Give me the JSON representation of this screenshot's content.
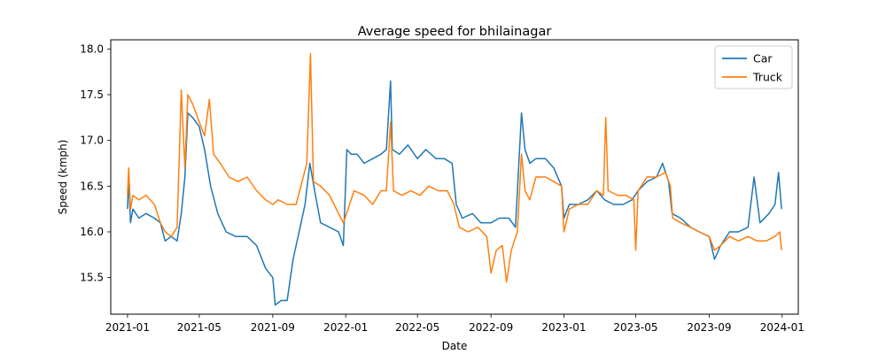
{
  "chart_data": {
    "type": "line",
    "title": "Average speed for bhilainagar",
    "xlabel": "Date",
    "ylabel": "Speed (kmph)",
    "xlim": [
      "2020-12-04",
      "2024-01-28"
    ],
    "ylim": [
      15.1,
      18.1
    ],
    "x_ticks": [
      "2021-01-01",
      "2021-05-01",
      "2021-09-01",
      "2022-01-01",
      "2022-05-01",
      "2022-09-01",
      "2023-01-01",
      "2023-05-01",
      "2023-09-01",
      "2024-01-01"
    ],
    "x_tick_labels": [
      "2021-01",
      "2021-05",
      "2021-09",
      "2022-01",
      "2022-05",
      "2022-09",
      "2023-01",
      "2023-05",
      "2023-09",
      "2024-01"
    ],
    "y_ticks": [
      15.5,
      16.0,
      16.5,
      17.0,
      17.5,
      18.0
    ],
    "y_tick_labels": [
      "15.5",
      "16.0",
      "16.5",
      "17.0",
      "17.5",
      "18.0"
    ],
    "grid": false,
    "legend_position": "top-right",
    "series": [
      {
        "name": "Car",
        "color": "#1f77b4",
        "points": [
          [
            "2021-01-01",
            16.25
          ],
          [
            "2021-01-03",
            16.6
          ],
          [
            "2021-01-06",
            16.1
          ],
          [
            "2021-01-10",
            16.25
          ],
          [
            "2021-01-20",
            16.15
          ],
          [
            "2021-02-01",
            16.2
          ],
          [
            "2021-02-15",
            16.15
          ],
          [
            "2021-02-25",
            16.1
          ],
          [
            "2021-03-05",
            15.9
          ],
          [
            "2021-03-15",
            15.95
          ],
          [
            "2021-03-25",
            15.9
          ],
          [
            "2021-04-01",
            16.2
          ],
          [
            "2021-04-07",
            16.6
          ],
          [
            "2021-04-12",
            17.3
          ],
          [
            "2021-04-20",
            17.25
          ],
          [
            "2021-05-01",
            17.15
          ],
          [
            "2021-05-10",
            16.9
          ],
          [
            "2021-05-20",
            16.5
          ],
          [
            "2021-06-01",
            16.2
          ],
          [
            "2021-06-15",
            16.0
          ],
          [
            "2021-07-01",
            15.95
          ],
          [
            "2021-07-20",
            15.95
          ],
          [
            "2021-08-05",
            15.85
          ],
          [
            "2021-08-20",
            15.6
          ],
          [
            "2021-09-01",
            15.5
          ],
          [
            "2021-09-05",
            15.2
          ],
          [
            "2021-09-15",
            15.25
          ],
          [
            "2021-09-25",
            15.25
          ],
          [
            "2021-10-05",
            15.7
          ],
          [
            "2021-10-15",
            16.0
          ],
          [
            "2021-10-25",
            16.3
          ],
          [
            "2021-11-02",
            16.75
          ],
          [
            "2021-11-10",
            16.45
          ],
          [
            "2021-11-20",
            16.1
          ],
          [
            "2021-12-05",
            16.05
          ],
          [
            "2021-12-20",
            16.0
          ],
          [
            "2021-12-28",
            15.85
          ],
          [
            "2022-01-03",
            16.9
          ],
          [
            "2022-01-10",
            16.85
          ],
          [
            "2022-01-20",
            16.85
          ],
          [
            "2022-02-01",
            16.75
          ],
          [
            "2022-02-15",
            16.8
          ],
          [
            "2022-03-01",
            16.85
          ],
          [
            "2022-03-10",
            16.9
          ],
          [
            "2022-03-17",
            17.65
          ],
          [
            "2022-03-20",
            16.9
          ],
          [
            "2022-04-01",
            16.85
          ],
          [
            "2022-04-15",
            16.95
          ],
          [
            "2022-05-01",
            16.8
          ],
          [
            "2022-05-15",
            16.9
          ],
          [
            "2022-06-01",
            16.8
          ],
          [
            "2022-06-15",
            16.8
          ],
          [
            "2022-06-28",
            16.75
          ],
          [
            "2022-07-05",
            16.3
          ],
          [
            "2022-07-15",
            16.15
          ],
          [
            "2022-08-01",
            16.2
          ],
          [
            "2022-08-15",
            16.1
          ],
          [
            "2022-09-01",
            16.1
          ],
          [
            "2022-09-15",
            16.15
          ],
          [
            "2022-10-01",
            16.15
          ],
          [
            "2022-10-12",
            16.05
          ],
          [
            "2022-10-22",
            17.3
          ],
          [
            "2022-10-28",
            16.9
          ],
          [
            "2022-11-05",
            16.75
          ],
          [
            "2022-11-15",
            16.8
          ],
          [
            "2022-12-01",
            16.8
          ],
          [
            "2022-12-15",
            16.7
          ],
          [
            "2022-12-28",
            16.5
          ],
          [
            "2023-01-01",
            16.15
          ],
          [
            "2023-01-10",
            16.3
          ],
          [
            "2023-01-25",
            16.3
          ],
          [
            "2023-02-10",
            16.35
          ],
          [
            "2023-02-25",
            16.45
          ],
          [
            "2023-03-10",
            16.35
          ],
          [
            "2023-03-25",
            16.3
          ],
          [
            "2023-04-10",
            16.3
          ],
          [
            "2023-04-25",
            16.35
          ],
          [
            "2023-05-05",
            16.45
          ],
          [
            "2023-05-20",
            16.55
          ],
          [
            "2023-06-05",
            16.6
          ],
          [
            "2023-06-15",
            16.75
          ],
          [
            "2023-06-25",
            16.55
          ],
          [
            "2023-07-01",
            16.2
          ],
          [
            "2023-07-15",
            16.15
          ],
          [
            "2023-08-01",
            16.05
          ],
          [
            "2023-08-15",
            16.0
          ],
          [
            "2023-09-01",
            15.95
          ],
          [
            "2023-09-10",
            15.7
          ],
          [
            "2023-09-20",
            15.85
          ],
          [
            "2023-10-05",
            16.0
          ],
          [
            "2023-10-20",
            16.0
          ],
          [
            "2023-11-05",
            16.05
          ],
          [
            "2023-11-15",
            16.6
          ],
          [
            "2023-11-25",
            16.1
          ],
          [
            "2023-12-10",
            16.2
          ],
          [
            "2023-12-20",
            16.3
          ],
          [
            "2023-12-26",
            16.65
          ],
          [
            "2023-12-31",
            16.25
          ]
        ]
      },
      {
        "name": "Truck",
        "color": "#ff7f0e",
        "points": [
          [
            "2021-01-01",
            16.4
          ],
          [
            "2021-01-03",
            16.7
          ],
          [
            "2021-01-06",
            16.25
          ],
          [
            "2021-01-10",
            16.4
          ],
          [
            "2021-01-20",
            16.35
          ],
          [
            "2021-02-01",
            16.4
          ],
          [
            "2021-02-15",
            16.3
          ],
          [
            "2021-02-25",
            16.1
          ],
          [
            "2021-03-05",
            16.0
          ],
          [
            "2021-03-15",
            15.95
          ],
          [
            "2021-03-25",
            16.05
          ],
          [
            "2021-04-01",
            17.55
          ],
          [
            "2021-04-07",
            16.7
          ],
          [
            "2021-04-12",
            17.5
          ],
          [
            "2021-04-20",
            17.4
          ],
          [
            "2021-05-01",
            17.2
          ],
          [
            "2021-05-10",
            17.05
          ],
          [
            "2021-05-18",
            17.45
          ],
          [
            "2021-05-25",
            16.85
          ],
          [
            "2021-06-05",
            16.75
          ],
          [
            "2021-06-20",
            16.6
          ],
          [
            "2021-07-05",
            16.55
          ],
          [
            "2021-07-20",
            16.6
          ],
          [
            "2021-08-05",
            16.45
          ],
          [
            "2021-08-20",
            16.35
          ],
          [
            "2021-09-01",
            16.3
          ],
          [
            "2021-09-10",
            16.35
          ],
          [
            "2021-09-25",
            16.3
          ],
          [
            "2021-10-10",
            16.3
          ],
          [
            "2021-10-20",
            16.55
          ],
          [
            "2021-10-28",
            16.75
          ],
          [
            "2021-11-03",
            17.95
          ],
          [
            "2021-11-08",
            16.55
          ],
          [
            "2021-11-20",
            16.5
          ],
          [
            "2021-12-05",
            16.4
          ],
          [
            "2021-12-20",
            16.2
          ],
          [
            "2021-12-28",
            16.1
          ],
          [
            "2022-01-05",
            16.25
          ],
          [
            "2022-01-15",
            16.45
          ],
          [
            "2022-02-01",
            16.4
          ],
          [
            "2022-02-15",
            16.3
          ],
          [
            "2022-03-01",
            16.45
          ],
          [
            "2022-03-10",
            16.45
          ],
          [
            "2022-03-17",
            17.2
          ],
          [
            "2022-03-22",
            16.45
          ],
          [
            "2022-04-05",
            16.4
          ],
          [
            "2022-04-20",
            16.45
          ],
          [
            "2022-05-05",
            16.4
          ],
          [
            "2022-05-20",
            16.5
          ],
          [
            "2022-06-05",
            16.45
          ],
          [
            "2022-06-20",
            16.45
          ],
          [
            "2022-07-01",
            16.3
          ],
          [
            "2022-07-10",
            16.05
          ],
          [
            "2022-07-25",
            16.0
          ],
          [
            "2022-08-10",
            16.05
          ],
          [
            "2022-08-25",
            15.95
          ],
          [
            "2022-09-01",
            15.55
          ],
          [
            "2022-09-10",
            15.8
          ],
          [
            "2022-09-20",
            15.85
          ],
          [
            "2022-09-27",
            15.45
          ],
          [
            "2022-10-05",
            15.8
          ],
          [
            "2022-10-15",
            16.0
          ],
          [
            "2022-10-22",
            16.85
          ],
          [
            "2022-10-28",
            16.45
          ],
          [
            "2022-11-05",
            16.35
          ],
          [
            "2022-11-15",
            16.6
          ],
          [
            "2022-12-01",
            16.6
          ],
          [
            "2022-12-15",
            16.55
          ],
          [
            "2022-12-28",
            16.5
          ],
          [
            "2023-01-01",
            16.0
          ],
          [
            "2023-01-10",
            16.25
          ],
          [
            "2023-01-25",
            16.3
          ],
          [
            "2023-02-10",
            16.3
          ],
          [
            "2023-02-25",
            16.45
          ],
          [
            "2023-03-08",
            16.4
          ],
          [
            "2023-03-12",
            17.25
          ],
          [
            "2023-03-16",
            16.45
          ],
          [
            "2023-04-01",
            16.4
          ],
          [
            "2023-04-15",
            16.4
          ],
          [
            "2023-04-28",
            16.35
          ],
          [
            "2023-05-01",
            15.8
          ],
          [
            "2023-05-05",
            16.45
          ],
          [
            "2023-05-20",
            16.6
          ],
          [
            "2023-06-05",
            16.6
          ],
          [
            "2023-06-20",
            16.65
          ],
          [
            "2023-06-28",
            16.5
          ],
          [
            "2023-07-02",
            16.15
          ],
          [
            "2023-07-15",
            16.1
          ],
          [
            "2023-08-01",
            16.05
          ],
          [
            "2023-08-15",
            16.0
          ],
          [
            "2023-09-01",
            15.95
          ],
          [
            "2023-09-10",
            15.8
          ],
          [
            "2023-09-20",
            15.85
          ],
          [
            "2023-10-05",
            15.95
          ],
          [
            "2023-10-20",
            15.9
          ],
          [
            "2023-11-05",
            15.95
          ],
          [
            "2023-11-20",
            15.9
          ],
          [
            "2023-12-05",
            15.9
          ],
          [
            "2023-12-20",
            15.95
          ],
          [
            "2023-12-28",
            16.0
          ],
          [
            "2023-12-31",
            15.8
          ]
        ]
      }
    ]
  }
}
